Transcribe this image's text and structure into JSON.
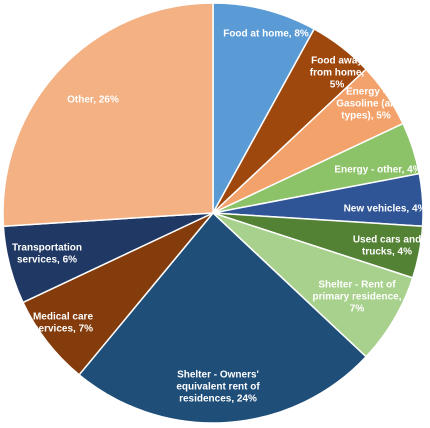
{
  "chart_data": {
    "type": "pie",
    "title": "",
    "slices": [
      {
        "name": "Food at home",
        "value": 8,
        "label": [
          "Food at home, 8%"
        ],
        "color": "#5B9BD5"
      },
      {
        "name": "Food away from home",
        "value": 5,
        "label": [
          "Food away",
          "from home,",
          "5%"
        ],
        "color": "#9E480E"
      },
      {
        "name": "Energy - Gasoline (all types)",
        "value": 5,
        "label": [
          "Energy -",
          "Gasoline (all",
          "types), 5%"
        ],
        "color": "#F4A26B"
      },
      {
        "name": "Energy - other",
        "value": 4,
        "label": [
          "Energy - other, 4%"
        ],
        "color": "#8CC268"
      },
      {
        "name": "New vehicles",
        "value": 4,
        "label": [
          "New vehicles, 4%"
        ],
        "color": "#2F5597"
      },
      {
        "name": "Used cars and trucks",
        "value": 4,
        "label": [
          "Used cars and",
          "trucks, 4%"
        ],
        "color": "#548235"
      },
      {
        "name": "Shelter - Rent of primary residence",
        "value": 7,
        "label": [
          "Shelter - Rent of",
          "primary residence,",
          "7%"
        ],
        "color": "#A9D18E"
      },
      {
        "name": "Shelter - Owners' equivalent rent of residences",
        "value": 24,
        "label": [
          "Shelter - Owners'",
          "equivalent rent of",
          "residences, 24%"
        ],
        "color": "#1F4E79"
      },
      {
        "name": "Medical care services",
        "value": 7,
        "label": [
          "Medical care",
          "services, 7%"
        ],
        "color": "#843C0C"
      },
      {
        "name": "Transportation services",
        "value": 6,
        "label": [
          "Transportation",
          "services, 6%"
        ],
        "color": "#203864"
      },
      {
        "name": "Other",
        "value": 26,
        "label": [
          "Other, 26%"
        ],
        "color": "#F4B183"
      }
    ]
  }
}
